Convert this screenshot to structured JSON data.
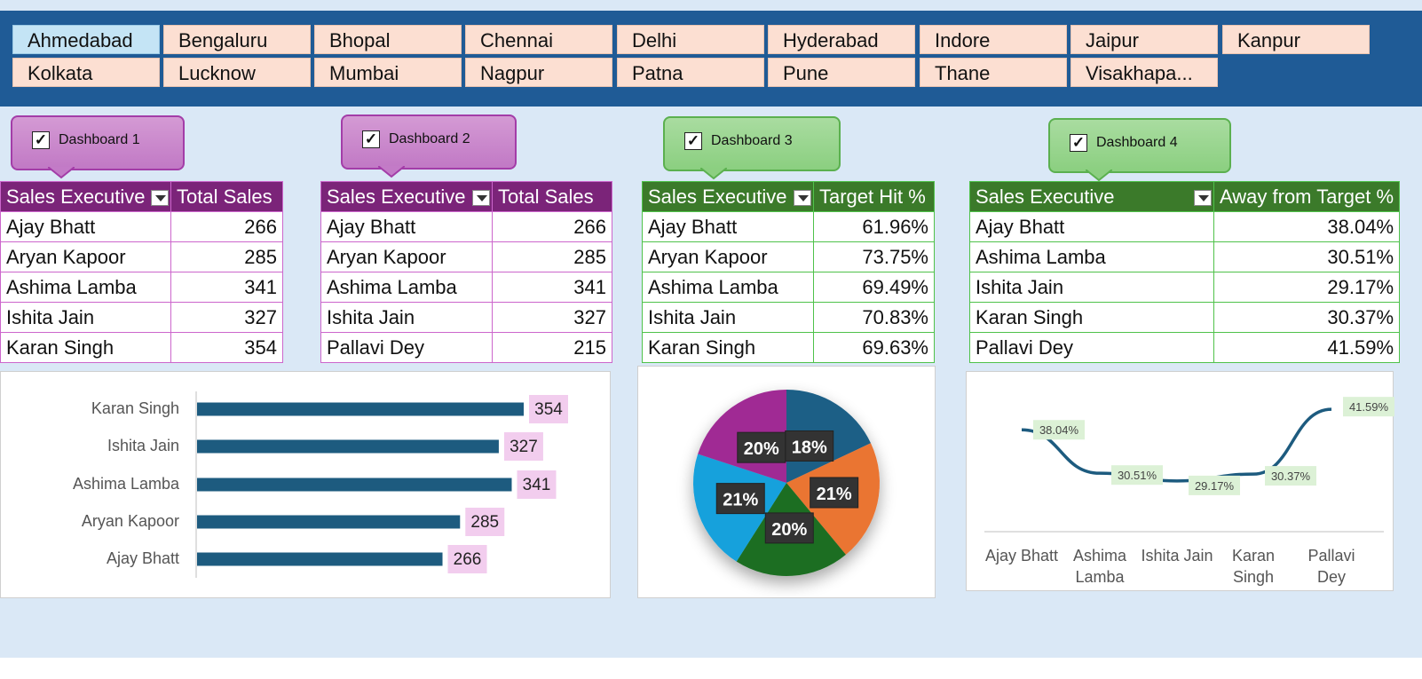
{
  "slicer": {
    "cities": [
      "Ahmedabad",
      "Bengaluru",
      "Bhopal",
      "Chennai",
      "Delhi",
      "Hyderabad",
      "Indore",
      "Jaipur",
      "Kanpur",
      "Kolkata",
      "Lucknow",
      "Mumbai",
      "Nagpur",
      "Patna",
      "Pune",
      "Thane",
      "Visakhapa..."
    ],
    "selected": "Ahmedabad"
  },
  "dashboards": [
    {
      "label": "Dashboard 1",
      "checked": true,
      "color": "purple"
    },
    {
      "label": "Dashboard 2",
      "checked": true,
      "color": "purple"
    },
    {
      "label": "Dashboard 3",
      "checked": true,
      "color": "green"
    },
    {
      "label": "Dashboard 4",
      "checked": true,
      "color": "green"
    }
  ],
  "tables": [
    {
      "col1": "Sales Executive",
      "col2": "Total Sales",
      "rows": [
        [
          "Ajay Bhatt",
          "266"
        ],
        [
          "Aryan Kapoor",
          "285"
        ],
        [
          "Ashima Lamba",
          "341"
        ],
        [
          "Ishita Jain",
          "327"
        ],
        [
          "Karan Singh",
          "354"
        ]
      ]
    },
    {
      "col1": "Sales Executive",
      "col2": "Total Sales",
      "rows": [
        [
          "Ajay Bhatt",
          "266"
        ],
        [
          "Aryan Kapoor",
          "285"
        ],
        [
          "Ashima Lamba",
          "341"
        ],
        [
          "Ishita Jain",
          "327"
        ],
        [
          "Pallavi Dey",
          "215"
        ]
      ]
    },
    {
      "col1": "Sales Executive",
      "col2": "Target Hit %",
      "rows": [
        [
          "Ajay Bhatt",
          "61.96%"
        ],
        [
          "Aryan Kapoor",
          "73.75%"
        ],
        [
          "Ashima Lamba",
          "69.49%"
        ],
        [
          "Ishita Jain",
          "70.83%"
        ],
        [
          "Karan Singh",
          "69.63%"
        ]
      ]
    },
    {
      "col1": "Sales Executive",
      "col2": "Away from Target %",
      "rows": [
        [
          "Ajay Bhatt",
          "38.04%"
        ],
        [
          "Ashima Lamba",
          "30.51%"
        ],
        [
          "Ishita Jain",
          "29.17%"
        ],
        [
          "Karan Singh",
          "30.37%"
        ],
        [
          "Pallavi Dey",
          "41.59%"
        ]
      ]
    }
  ],
  "colors": {
    "bar": "#1d5b7f",
    "bar_label_bg": "#f2cdee",
    "pie": [
      "#1b5f86",
      "#ea7433",
      "#1c6e22",
      "#13a1dc",
      "#a02b94"
    ],
    "line": "#1d5b7f",
    "line_label_bg": "#dcf1d6"
  },
  "chart_data": [
    {
      "type": "bar",
      "orientation": "horizontal",
      "categories": [
        "Karan Singh",
        "Ishita Jain",
        "Ashima Lamba",
        "Aryan Kapoor",
        "Ajay Bhatt"
      ],
      "values": [
        354,
        327,
        341,
        285,
        266
      ],
      "labels": [
        "354",
        "327",
        "341",
        "285",
        "266"
      ],
      "title": "",
      "xlabel": "",
      "ylabel": "",
      "grid": false,
      "legend": "none"
    },
    {
      "type": "pie",
      "values": [
        18,
        21,
        20,
        21,
        20
      ],
      "labels": [
        "18%",
        "21%",
        "20%",
        "21%",
        "20%"
      ],
      "title": "",
      "legend": "none"
    },
    {
      "type": "line",
      "categories": [
        "Ajay Bhatt",
        "Ashima Lamba",
        "Ishita Jain",
        "Karan Singh",
        "Pallavi Dey"
      ],
      "values": [
        38.04,
        30.51,
        29.17,
        30.37,
        41.59
      ],
      "labels": [
        "38.04%",
        "30.51%",
        "29.17%",
        "30.37%",
        "41.59%"
      ],
      "title": "",
      "xlabel": "",
      "ylabel": "",
      "grid": false,
      "legend": "none"
    }
  ]
}
